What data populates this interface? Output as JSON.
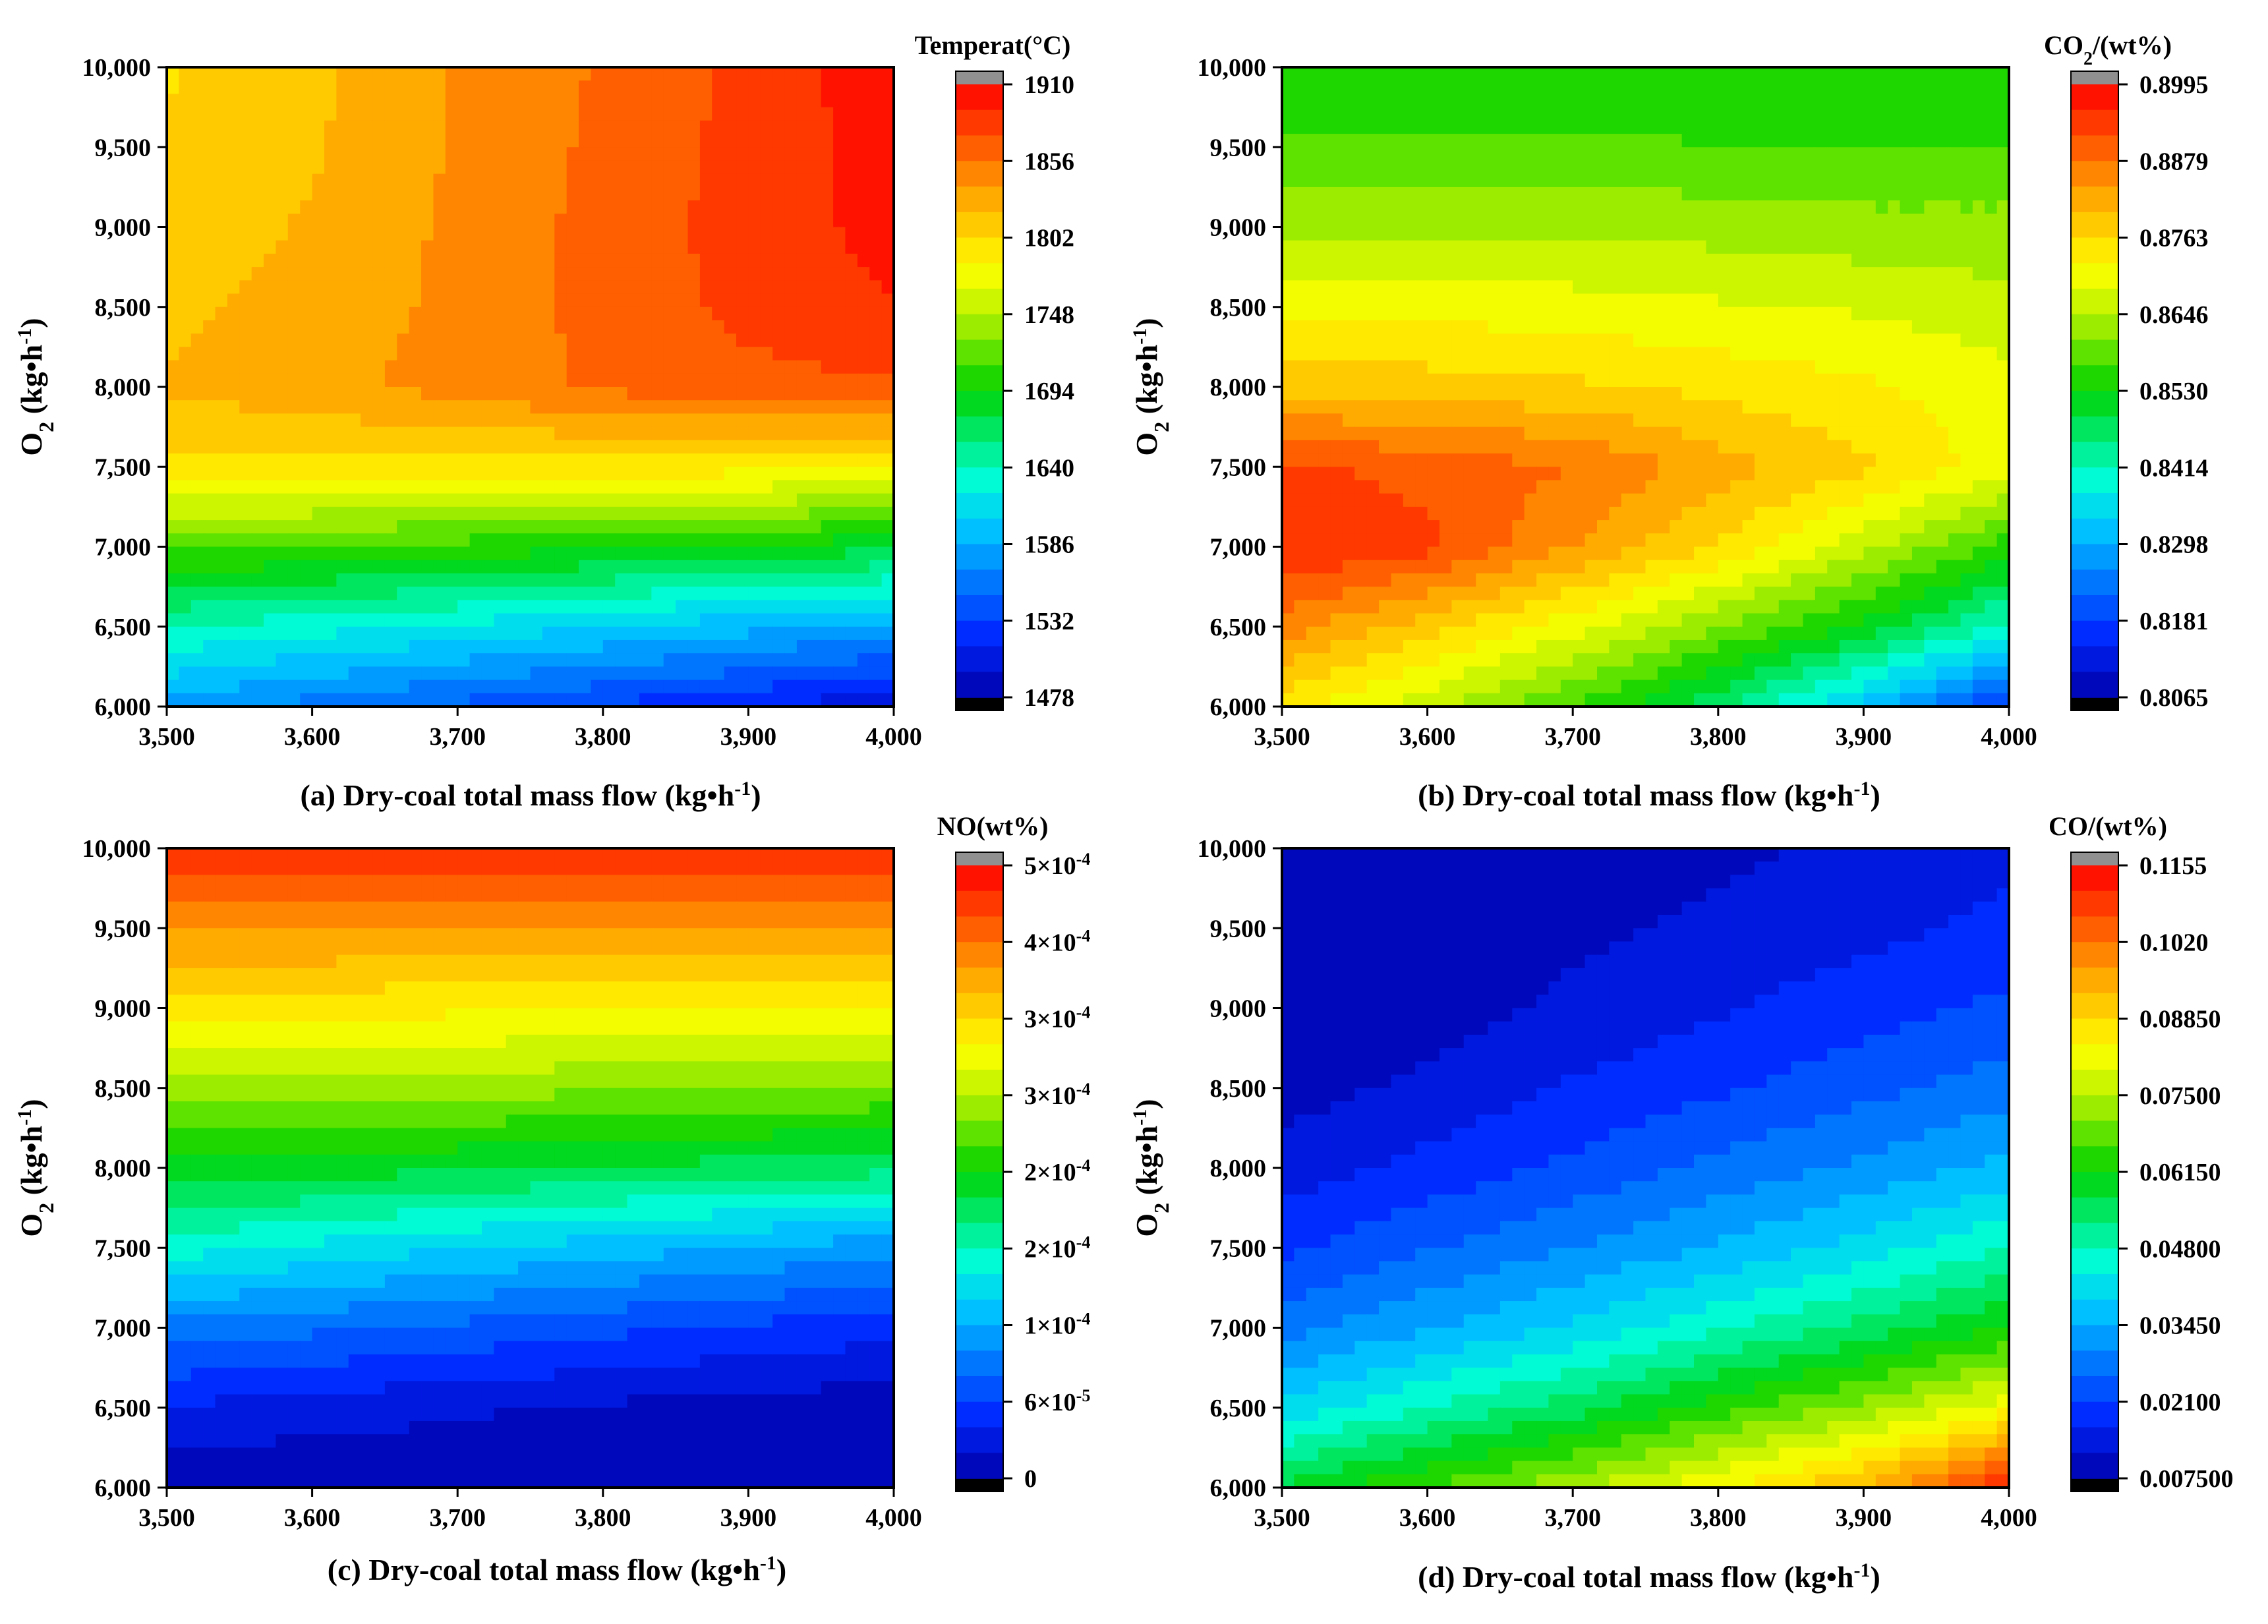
{
  "chart_data": [
    {
      "id": "a",
      "type": "heatmap",
      "subtype": "filled-contour",
      "caption": "(a)  Dry-coal total mass flow (kg•h",
      "caption_sup": "-1",
      "caption_end": ")",
      "ylabel": "O",
      "ylabel_sub": "2",
      "ylabel_rest": " (kg•h",
      "ylabel_sup": "-1",
      "ylabel_end": ")",
      "x_ticks": [
        "3,500",
        "3,600",
        "3,700",
        "3,800",
        "3,900",
        "4,000"
      ],
      "y_ticks": [
        "6,000",
        "6,500",
        "7,000",
        "7,500",
        "8,000",
        "8,500",
        "9,000",
        "9,500",
        "10,000"
      ],
      "xlim": [
        3500,
        4000
      ],
      "ylim": [
        6000,
        10000
      ],
      "colorbar_title": "Temperat(°C)",
      "colorbar_ticks": [
        "1910",
        "1856",
        "1802",
        "1748",
        "1694",
        "1640",
        "1586",
        "1532",
        "1478"
      ],
      "zlim": [
        1478,
        1910
      ],
      "grid": {
        "x": [
          3500,
          3600,
          3700,
          3800,
          3900,
          4000
        ],
        "y": [
          6000,
          6500,
          7000,
          7500,
          8000,
          8500,
          9000,
          9500,
          10000
        ],
        "z": [
          [
            1580,
            1560,
            1545,
            1530,
            1515,
            1500
          ],
          [
            1640,
            1630,
            1618,
            1605,
            1592,
            1580
          ],
          [
            1718,
            1712,
            1705,
            1698,
            1690,
            1682
          ],
          [
            1800,
            1798,
            1795,
            1795,
            1792,
            1790
          ],
          [
            1822,
            1832,
            1845,
            1860,
            1868,
            1872
          ],
          [
            1815,
            1828,
            1842,
            1862,
            1880,
            1892
          ],
          [
            1810,
            1822,
            1842,
            1862,
            1882,
            1898
          ],
          [
            1805,
            1818,
            1840,
            1860,
            1880,
            1900
          ],
          [
            1800,
            1815,
            1840,
            1858,
            1880,
            1905
          ]
        ]
      }
    },
    {
      "id": "b",
      "type": "heatmap",
      "subtype": "filled-contour",
      "caption": "(b)  Dry-coal total mass flow (kg•h",
      "caption_sup": "-1",
      "caption_end": ")",
      "ylabel": "O",
      "ylabel_sub": "2",
      "ylabel_rest": " (kg•h",
      "ylabel_sup": "-1",
      "ylabel_end": ")",
      "x_ticks": [
        "3,500",
        "3,600",
        "3,700",
        "3,800",
        "3,900",
        "4,000"
      ],
      "y_ticks": [
        "6,000",
        "6,500",
        "7,000",
        "7,500",
        "8,000",
        "8,500",
        "9,000",
        "9,500",
        "10,000"
      ],
      "xlim": [
        3500,
        4000
      ],
      "ylim": [
        6000,
        10000
      ],
      "colorbar_title": "CO",
      "colorbar_title_sub": "2",
      "colorbar_title_rest": "/(wt%)",
      "colorbar_ticks": [
        "0.8995",
        "0.8879",
        "0.8763",
        "0.8646",
        "0.8530",
        "0.8414",
        "0.8298",
        "0.8181",
        "0.8065"
      ],
      "zlim": [
        0.8065,
        0.8995
      ],
      "grid": {
        "x": [
          3500,
          3600,
          3700,
          3800,
          3900,
          4000
        ],
        "y": [
          6000,
          6500,
          7000,
          7500,
          8000,
          8500,
          9000,
          9500,
          10000
        ],
        "z": [
          [
            0.874,
            0.866,
            0.857,
            0.846,
            0.832,
            0.816
          ],
          [
            0.886,
            0.878,
            0.87,
            0.861,
            0.852,
            0.84
          ],
          [
            0.896,
            0.893,
            0.884,
            0.876,
            0.866,
            0.855
          ],
          [
            0.893,
            0.89,
            0.888,
            0.882,
            0.877,
            0.87
          ],
          [
            0.879,
            0.878,
            0.877,
            0.875,
            0.873,
            0.87
          ],
          [
            0.871,
            0.871,
            0.87,
            0.869,
            0.868,
            0.866
          ],
          [
            0.864,
            0.864,
            0.864,
            0.863,
            0.862,
            0.862
          ],
          [
            0.858,
            0.858,
            0.858,
            0.857,
            0.857,
            0.857
          ],
          [
            0.853,
            0.853,
            0.853,
            0.853,
            0.853,
            0.853
          ]
        ]
      }
    },
    {
      "id": "c",
      "type": "heatmap",
      "subtype": "filled-contour",
      "caption": "(c)  Dry-coal total mass flow (kg•h",
      "caption_sup": "-1",
      "caption_end": ")",
      "ylabel": "O",
      "ylabel_sub": "2",
      "ylabel_rest": " (kg•h",
      "ylabel_sup": "-1",
      "ylabel_end": ")",
      "x_ticks": [
        "3,500",
        "3,600",
        "3,700",
        "3,800",
        "3,900",
        "4,000"
      ],
      "y_ticks": [
        "6,000",
        "6,500",
        "7,000",
        "7,500",
        "8,000",
        "8,500",
        "9,000",
        "9,500",
        "10,000"
      ],
      "xlim": [
        3500,
        4000
      ],
      "ylim": [
        6000,
        10000
      ],
      "colorbar_title": "NO(wt%)",
      "colorbar_ticks": [
        "5×10",
        "4×10",
        "3×10",
        "3×10",
        "2×10",
        "2×10",
        "1×10",
        "6×10",
        "0"
      ],
      "colorbar_tick_exps": [
        "-4",
        "-4",
        "-4",
        "-4",
        "-4",
        "-4",
        "-4",
        "-5",
        ""
      ],
      "zlim": [
        0,
        0.00051
      ],
      "grid": {
        "x": [
          3500,
          3600,
          3700,
          3800,
          3900,
          4000
        ],
        "y": [
          6000,
          6500,
          7000,
          7500,
          8000,
          8500,
          9000,
          9500,
          10000
        ],
        "z": [
          [
            5e-06,
            3e-06,
            2e-06,
            1e-06,
            5e-07,
            0.0
          ],
          [
            4e-05,
            3.2e-05,
            2.5e-05,
            1.8e-05,
            1.2e-05,
            8e-06
          ],
          [
            0.0001,
            9e-05,
            8e-05,
            7e-05,
            6e-05,
            5e-05
          ],
          [
            0.00018,
            0.000165,
            0.00015,
            0.000138,
            0.000125,
            0.000115
          ],
          [
            0.00025,
            0.000245,
            0.000238,
            0.000232,
            0.000226,
            0.00022
          ],
          [
            0.00031,
            0.00031,
            0.000306,
            0.000302,
            0.000298,
            0.000294
          ],
          [
            0.00037,
            0.000368,
            0.000366,
            0.000364,
            0.000362,
            0.00036
          ],
          [
            0.00043,
            0.00043,
            0.000428,
            0.000426,
            0.000422,
            0.00042
          ],
          [
            0.00049,
            0.00049,
            0.000492,
            0.000494,
            0.000494,
            0.000495
          ]
        ]
      }
    },
    {
      "id": "d",
      "type": "heatmap",
      "subtype": "filled-contour",
      "caption": "(d)  Dry-coal total mass flow (kg•h",
      "caption_sup": "-1",
      "caption_end": ")",
      "ylabel": "O",
      "ylabel_sub": "2",
      "ylabel_rest": " (kg•h",
      "ylabel_sup": "-1",
      "ylabel_end": ")",
      "x_ticks": [
        "3,500",
        "3,600",
        "3,700",
        "3,800",
        "3,900",
        "4,000"
      ],
      "y_ticks": [
        "6,000",
        "6,500",
        "7,000",
        "7,500",
        "8,000",
        "8,500",
        "9,000",
        "9,500",
        "10,000"
      ],
      "xlim": [
        3500,
        4000
      ],
      "ylim": [
        6000,
        10000
      ],
      "colorbar_title": "CO/(wt%)",
      "colorbar_ticks": [
        "0.1155",
        "0.1020",
        "0.08850",
        "0.07500",
        "0.06150",
        "0.04800",
        "0.03450",
        "0.02100",
        "0.007500"
      ],
      "zlim": [
        0.0075,
        0.1155
      ],
      "grid": {
        "x": [
          3500,
          3600,
          3700,
          3800,
          3900,
          4000
        ],
        "y": [
          6000,
          6500,
          7000,
          7500,
          8000,
          8500,
          9000,
          9500,
          10000
        ],
        "z": [
          [
            0.058,
            0.066,
            0.074,
            0.083,
            0.094,
            0.112
          ],
          [
            0.04,
            0.048,
            0.055,
            0.064,
            0.072,
            0.082
          ],
          [
            0.028,
            0.034,
            0.04,
            0.047,
            0.054,
            0.062
          ],
          [
            0.02,
            0.025,
            0.03,
            0.035,
            0.041,
            0.048
          ],
          [
            0.014,
            0.018,
            0.022,
            0.027,
            0.031,
            0.036
          ],
          [
            0.01,
            0.013,
            0.017,
            0.02,
            0.024,
            0.028
          ],
          [
            0.008,
            0.01,
            0.013,
            0.016,
            0.019,
            0.022
          ],
          [
            0.0075,
            0.009,
            0.011,
            0.013,
            0.015,
            0.018
          ],
          [
            0.0075,
            0.008,
            0.009,
            0.011,
            0.013,
            0.015
          ]
        ]
      }
    }
  ]
}
